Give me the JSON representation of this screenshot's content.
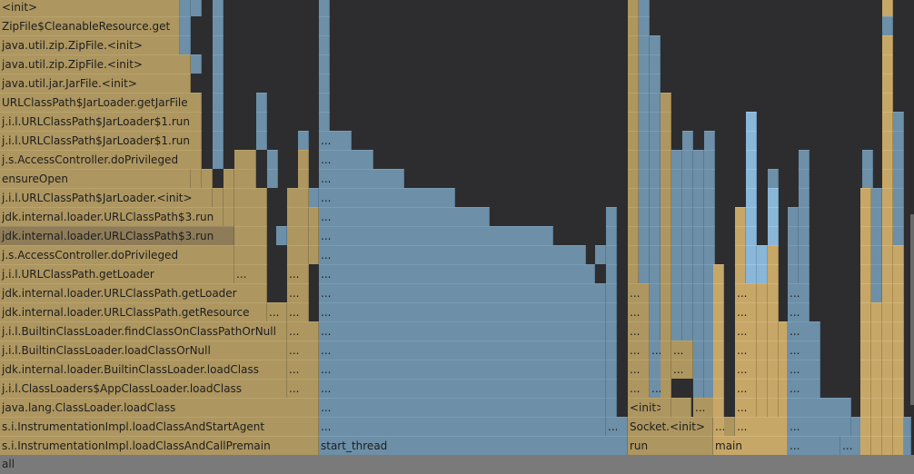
{
  "root_label": "all",
  "frames": {
    "init": "<init>",
    "zipfile_get": "ZipFile$CleanableResource.get",
    "zipfile_init1": "java.util.zip.ZipFile.<init>",
    "zipfile_init2": "java.util.zip.ZipFile.<init>",
    "jarfile_init": "java.util.jar.JarFile.<init>",
    "getjarfile": "URLClassPath$JarLoader.getJarFile",
    "jarloader_run1": "j.i.l.URLClassPath$JarLoader$1.run",
    "jarloader_run2": "j.i.l.URLClassPath$JarLoader$1.run",
    "doprivileged1": "j.s.AccessController.doPrivileged",
    "ensureopen": "ensureOpen",
    "jarloader_init": "j.i.l.URLClassPath$JarLoader.<init>",
    "ucp3_run1": "jdk.internal.loader.URLClassPath$3.run",
    "ucp3_run2": "jdk.internal.loader.URLClassPath$3.run",
    "doprivileged2": "j.s.AccessController.doPrivileged",
    "getloader1": "j.i.l.URLClassPath.getLoader",
    "getloader2": "jdk.internal.loader.URLClassPath.getLoader",
    "getresource": "jdk.internal.loader.URLClassPath.getResource",
    "findclass": "j.i.l.BuiltinClassLoader.findClassOnClassPathOrNull",
    "loadclassornull": "j.i.l.BuiltinClassLoader.loadClassOrNull",
    "builtin_loadclass": "jdk.internal.loader.BuiltinClassLoader.loadClass",
    "app_loadclass": "j.i.l.ClassLoaders$AppClassLoader.loadClass",
    "cl_loadclass": "java.lang.ClassLoader.loadClass",
    "loadclassandstart": "s.i.InstrumentationImpl.loadClassAndStartAgent",
    "loadclassandcall": "s.i.InstrumentationImpl.loadClassAndCallPremain",
    "start_thread": "start_thread",
    "run": "run",
    "main": "main",
    "socket_init": "Socket.<init>",
    "init2": "<init>",
    "ellipsis": "..."
  },
  "colors": {
    "background": "#2d2d2f",
    "java": "#ad9660",
    "highlighted": "#8e7c58",
    "native": "#6d8fa8",
    "kernel": "#c7a768",
    "light": "#8ab6d8",
    "root": "#7a7a7a"
  }
}
